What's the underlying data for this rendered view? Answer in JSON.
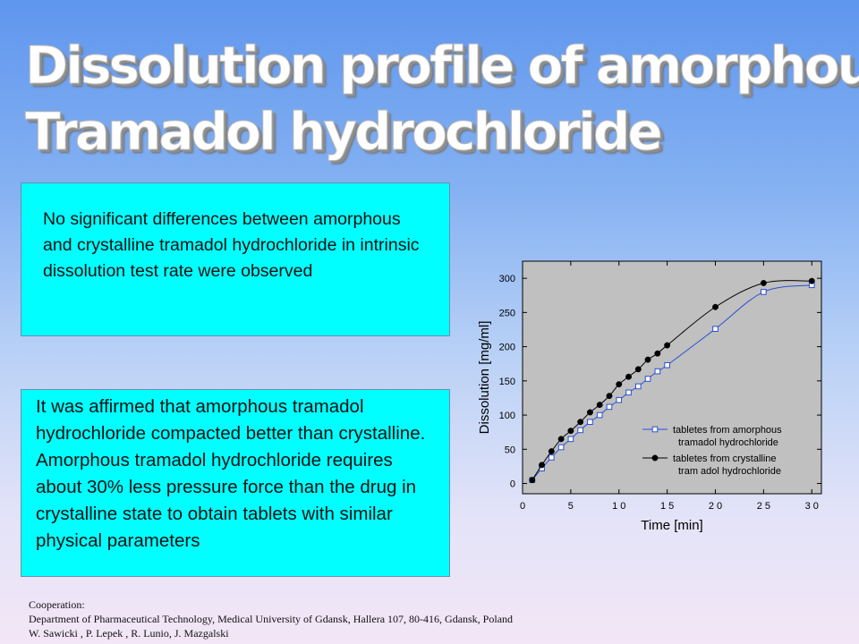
{
  "slide": {
    "title_line1": "Dissolution profile of amorphous",
    "title_line2": "Tramadol hydrochloride",
    "box1_text": "No significant differences between amorphous and crystalline tramadol hydrochloride in intrinsic dissolution test rate were observed",
    "box2_text": "It was affirmed that amorphous tramadol hydrochloride compacted better than crystalline. Amorphous tramadol hydrochloride requires about 30% less pressure force than the drug in crystalline state to obtain tablets with similar physical parameters",
    "footer_line1": "Cooperation:",
    "footer_line2": "Department of Pharmaceutical Technology, Medical University of Gdansk, Hallera 107, 80-416, Gdansk, Poland",
    "footer_line3": "W. Sawicki , P. Lepek , R. Lunio, J. Mazgalski"
  },
  "colors": {
    "plot_bg": "#c0c0c0",
    "amorphous": "#2a4fd6",
    "crystalline": "#000000"
  },
  "chart_data": {
    "type": "line",
    "xlabel": "Time [min]",
    "ylabel": "Dissolution [mg/ml]",
    "xlim": [
      0,
      31
    ],
    "ylim": [
      -15,
      325
    ],
    "xticks": [
      0,
      5,
      10,
      15,
      20,
      25,
      30
    ],
    "xtick_labels": [
      "0",
      "5",
      "1 0",
      "1 5",
      "2 0",
      "2 5",
      "3 0"
    ],
    "yticks": [
      0,
      50,
      100,
      150,
      200,
      250,
      300
    ],
    "ytick_labels": [
      "0",
      "50",
      "100",
      "150",
      "200",
      "250",
      "300"
    ],
    "grid": false,
    "legend_position": "bottom-right",
    "series": [
      {
        "name": "tabletes from amorphous tramadol hydrochloride",
        "legend_lines": [
          "tabletes from amorphous",
          "tramadol hydrochloride"
        ],
        "marker": "open-square",
        "color": "#2a4fd6",
        "x": [
          1,
          2,
          3,
          4,
          5,
          6,
          7,
          8,
          9,
          10,
          11,
          12,
          13,
          14,
          15,
          20,
          25,
          30
        ],
        "y": [
          5,
          22,
          38,
          53,
          65,
          78,
          90,
          100,
          112,
          122,
          133,
          142,
          153,
          164,
          173,
          226,
          280,
          290
        ]
      },
      {
        "name": "tabletes from crystalline tramadol hydrochloride",
        "legend_lines": [
          "tabletes from crystalline",
          "tram adol hydrochloride"
        ],
        "marker": "filled-circle",
        "color": "#000000",
        "x": [
          1,
          2,
          3,
          4,
          5,
          6,
          7,
          8,
          9,
          10,
          11,
          12,
          13,
          14,
          15,
          20,
          25,
          30
        ],
        "y": [
          5,
          27,
          47,
          65,
          77,
          90,
          104,
          115,
          128,
          145,
          156,
          167,
          181,
          190,
          202,
          258,
          293,
          296
        ]
      }
    ]
  }
}
